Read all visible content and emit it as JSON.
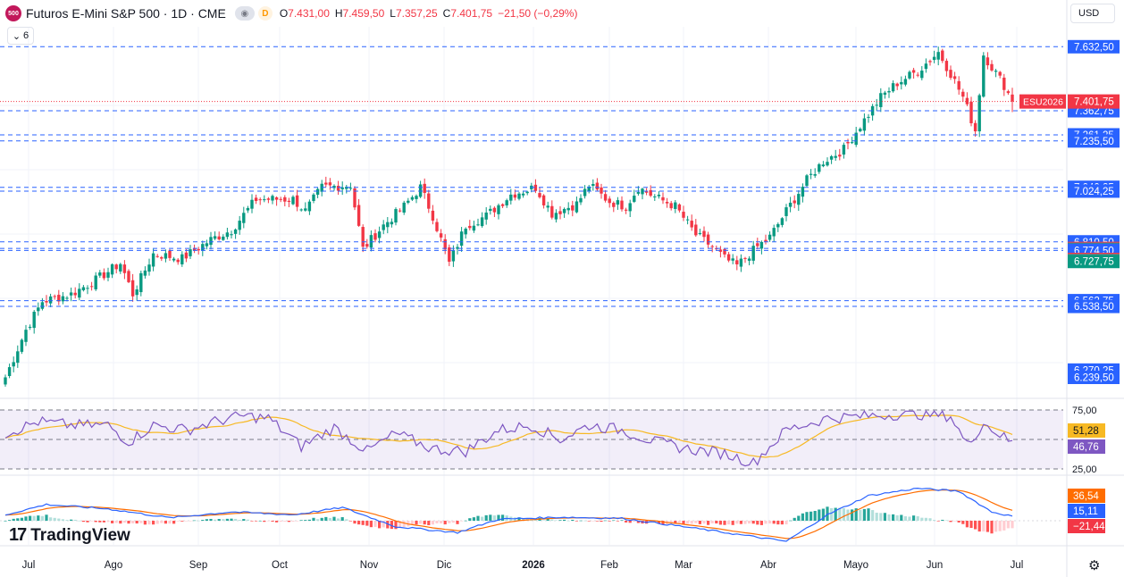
{
  "header": {
    "logo_text": "500",
    "symbol": "Futuros E-Mini S&P 500 · 1D · CME",
    "badge": "D",
    "ohlc": [
      {
        "k": "O",
        "v": "7.431,00"
      },
      {
        "k": "H",
        "v": "7.459,50"
      },
      {
        "k": "L",
        "v": "7.357,25"
      },
      {
        "k": "C",
        "v": "7.401,75"
      },
      {
        "k": "",
        "v": "−21,50 (−0,29%)"
      }
    ],
    "indicators_count": "6",
    "currency": "USD"
  },
  "brand": "TradingView",
  "colors": {
    "up": "#089981",
    "down": "#f23645",
    "line": "#2962ff",
    "rsi": "#7e57c2",
    "ma": "#f7b924",
    "signal": "#ff6d00"
  },
  "chart_data": [
    {
      "type": "candlestick",
      "title": "Futuros E-Mini S&P 500 · 1D · CME",
      "x_labels": [
        "Jul",
        "Ago",
        "Sep",
        "Oct",
        "Nov",
        "Dic",
        "2026",
        "Feb",
        "Mar",
        "Abr",
        "Mayo",
        "Jun",
        "Jul"
      ],
      "ylim": [
        6200,
        7660
      ],
      "y_ticks": [
        "7.632,50",
        "7.362,75",
        "7.261,25",
        "7.235,50",
        "7.040,25",
        "7.024,25",
        "6.810,50",
        "6.782,75",
        "6.779,25",
        "6.776,25",
        "6.774,50",
        "6.736,25",
        "6.732,00",
        "6.727,75",
        "6.562,75",
        "6.538,50",
        "6.270,25",
        "6.239,50"
      ],
      "price_tag": {
        "label": "ESU2026",
        "value": "7.401,75",
        "y": 7401.75
      },
      "levels": [
        7632.5,
        7362.75,
        7261.25,
        7235.5,
        7040.25,
        7024.25,
        6810.5,
        6782.75,
        6774.5,
        6562.75,
        6538.5
      ],
      "anchors": [
        {
          "d": 0,
          "p": 6240
        },
        {
          "d": 5,
          "p": 6440
        },
        {
          "d": 9,
          "p": 6560
        },
        {
          "d": 16,
          "p": 6590
        },
        {
          "d": 22,
          "p": 6650
        },
        {
          "d": 28,
          "p": 6720
        },
        {
          "d": 31,
          "p": 6590
        },
        {
          "d": 36,
          "p": 6760
        },
        {
          "d": 43,
          "p": 6740
        },
        {
          "d": 50,
          "p": 6820
        },
        {
          "d": 55,
          "p": 6860
        },
        {
          "d": 61,
          "p": 6990
        },
        {
          "d": 70,
          "p": 6990
        },
        {
          "d": 73,
          "p": 6940
        },
        {
          "d": 77,
          "p": 7040
        },
        {
          "d": 84,
          "p": 7050
        },
        {
          "d": 87,
          "p": 6780
        },
        {
          "d": 92,
          "p": 6880
        },
        {
          "d": 97,
          "p": 6960
        },
        {
          "d": 101,
          "p": 7040
        },
        {
          "d": 104,
          "p": 6920
        },
        {
          "d": 108,
          "p": 6720
        },
        {
          "d": 112,
          "p": 6880
        },
        {
          "d": 117,
          "p": 6920
        },
        {
          "d": 123,
          "p": 7010
        },
        {
          "d": 129,
          "p": 7040
        },
        {
          "d": 133,
          "p": 6930
        },
        {
          "d": 139,
          "p": 6970
        },
        {
          "d": 142,
          "p": 7050
        },
        {
          "d": 147,
          "p": 6980
        },
        {
          "d": 151,
          "p": 6960
        },
        {
          "d": 154,
          "p": 7040
        },
        {
          "d": 158,
          "p": 7000
        },
        {
          "d": 163,
          "p": 6960
        },
        {
          "d": 168,
          "p": 6840
        },
        {
          "d": 172,
          "p": 6790
        },
        {
          "d": 175,
          "p": 6740
        },
        {
          "d": 178,
          "p": 6710
        },
        {
          "d": 183,
          "p": 6790
        },
        {
          "d": 186,
          "p": 6830
        },
        {
          "d": 190,
          "p": 6940
        },
        {
          "d": 195,
          "p": 7070
        },
        {
          "d": 199,
          "p": 7150
        },
        {
          "d": 204,
          "p": 7200
        },
        {
          "d": 208,
          "p": 7300
        },
        {
          "d": 213,
          "p": 7420
        },
        {
          "d": 217,
          "p": 7480
        },
        {
          "d": 222,
          "p": 7530
        },
        {
          "d": 227,
          "p": 7610
        },
        {
          "d": 230,
          "p": 7520
        },
        {
          "d": 233,
          "p": 7420
        },
        {
          "d": 236,
          "p": 7280
        },
        {
          "d": 238,
          "p": 7600
        },
        {
          "d": 243,
          "p": 7470
        },
        {
          "d": 245,
          "p": 7401.75
        }
      ]
    },
    {
      "type": "line",
      "name": "RSI",
      "ylim": [
        25,
        75
      ],
      "y_ticks": [
        "75,00",
        "25,00"
      ],
      "last_values": [
        {
          "label": "51,28",
          "series": "ma"
        },
        {
          "label": "46,76",
          "series": "rsi"
        }
      ],
      "anchors": [
        {
          "d": 0,
          "v": 55
        },
        {
          "d": 8,
          "v": 65
        },
        {
          "d": 16,
          "v": 62
        },
        {
          "d": 25,
          "v": 62
        },
        {
          "d": 30,
          "v": 48
        },
        {
          "d": 36,
          "v": 62
        },
        {
          "d": 44,
          "v": 58
        },
        {
          "d": 52,
          "v": 66
        },
        {
          "d": 58,
          "v": 70
        },
        {
          "d": 64,
          "v": 68
        },
        {
          "d": 72,
          "v": 44
        },
        {
          "d": 80,
          "v": 60
        },
        {
          "d": 88,
          "v": 40
        },
        {
          "d": 95,
          "v": 55
        },
        {
          "d": 104,
          "v": 42
        },
        {
          "d": 112,
          "v": 40
        },
        {
          "d": 120,
          "v": 58
        },
        {
          "d": 128,
          "v": 62
        },
        {
          "d": 135,
          "v": 50
        },
        {
          "d": 142,
          "v": 62
        },
        {
          "d": 150,
          "v": 58
        },
        {
          "d": 158,
          "v": 48
        },
        {
          "d": 166,
          "v": 42
        },
        {
          "d": 175,
          "v": 38
        },
        {
          "d": 182,
          "v": 30
        },
        {
          "d": 190,
          "v": 58
        },
        {
          "d": 200,
          "v": 68
        },
        {
          "d": 210,
          "v": 70
        },
        {
          "d": 220,
          "v": 72
        },
        {
          "d": 230,
          "v": 70
        },
        {
          "d": 234,
          "v": 45
        },
        {
          "d": 238,
          "v": 64
        },
        {
          "d": 245,
          "v": 46.76
        }
      ]
    },
    {
      "type": "histogram+line",
      "name": "MACD",
      "last_values": [
        {
          "label": "36,54",
          "series": "signal"
        },
        {
          "label": "15,11",
          "series": "line"
        },
        {
          "label": "−21,44",
          "series": "histogram"
        }
      ],
      "anchors": [
        {
          "d": 0,
          "v": 20
        },
        {
          "d": 10,
          "v": 55
        },
        {
          "d": 25,
          "v": 40
        },
        {
          "d": 40,
          "v": 10
        },
        {
          "d": 55,
          "v": 30
        },
        {
          "d": 70,
          "v": 20
        },
        {
          "d": 82,
          "v": 45
        },
        {
          "d": 95,
          "v": -20
        },
        {
          "d": 110,
          "v": -40
        },
        {
          "d": 120,
          "v": 5
        },
        {
          "d": 135,
          "v": 12
        },
        {
          "d": 150,
          "v": 8
        },
        {
          "d": 165,
          "v": -20
        },
        {
          "d": 180,
          "v": -50
        },
        {
          "d": 190,
          "v": -70
        },
        {
          "d": 200,
          "v": 20
        },
        {
          "d": 210,
          "v": 85
        },
        {
          "d": 222,
          "v": 110
        },
        {
          "d": 232,
          "v": 100
        },
        {
          "d": 240,
          "v": 30
        },
        {
          "d": 245,
          "v": 15.11
        }
      ]
    }
  ]
}
